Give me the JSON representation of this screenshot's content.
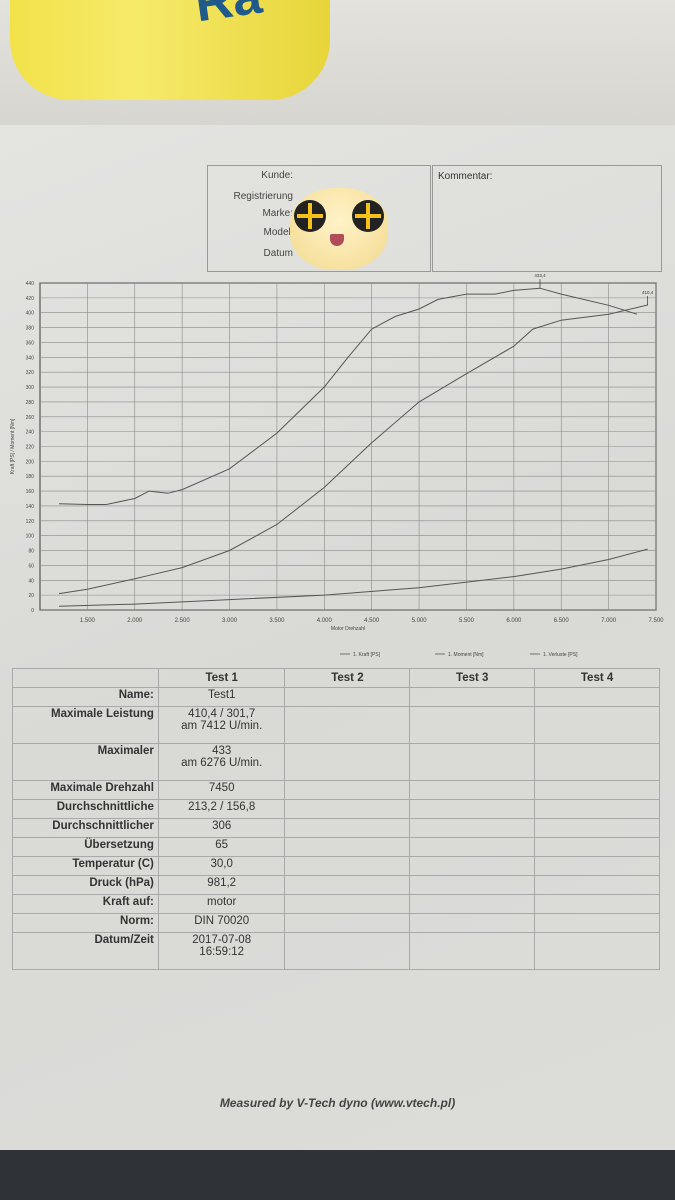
{
  "header": {
    "fields": [
      {
        "label": "Kunde:"
      },
      {
        "label": "Registrierung"
      },
      {
        "label": "Marke:"
      },
      {
        "label": "Modell"
      },
      {
        "label": "Datum"
      }
    ],
    "comment_label": "Kommentar:"
  },
  "background_logo_text": "Ra",
  "chart_data": {
    "type": "line",
    "xlabel": "Motor Drehzahl",
    "ylabel": "Kraft [PS] / Moment [Nm]",
    "xlim": [
      1000,
      7500
    ],
    "ylim": [
      0,
      440
    ],
    "x_ticks": [
      "1.500",
      "2.000",
      "2.500",
      "3.000",
      "3.500",
      "4.000",
      "4.500",
      "5.000",
      "5.500",
      "6.000",
      "6.500",
      "7.000",
      "7.500"
    ],
    "x_tick_values": [
      1500,
      2000,
      2500,
      3000,
      3500,
      4000,
      4500,
      5000,
      5500,
      6000,
      6500,
      7000,
      7500
    ],
    "y_ticks": [
      0,
      20,
      40,
      60,
      80,
      100,
      120,
      140,
      160,
      180,
      200,
      220,
      240,
      260,
      280,
      300,
      320,
      340,
      360,
      380,
      400,
      420,
      440
    ],
    "grid": true,
    "legend_position": "bottom",
    "series": [
      {
        "name": "1. Kraft [PS]",
        "x": [
          1200,
          1500,
          2000,
          2200,
          2500,
          3000,
          3500,
          4000,
          4500,
          5000,
          5500,
          6000,
          6200,
          6500,
          7000,
          7412
        ],
        "y": [
          22,
          28,
          42,
          48,
          57,
          80,
          115,
          165,
          225,
          280,
          318,
          355,
          378,
          390,
          398,
          410.4
        ]
      },
      {
        "name": "1. Moment [Nm]",
        "x": [
          1200,
          1500,
          1700,
          2000,
          2150,
          2350,
          2500,
          3000,
          3500,
          4000,
          4250,
          4500,
          4750,
          5000,
          5200,
          5500,
          5800,
          6000,
          6276,
          6500,
          7000,
          7300
        ],
        "y": [
          143,
          142,
          142,
          150,
          160,
          157,
          162,
          190,
          238,
          300,
          340,
          378,
          395,
          405,
          418,
          425,
          425,
          430,
          433,
          425,
          410,
          398
        ]
      },
      {
        "name": "1. Verluste [PS]",
        "x": [
          1200,
          2000,
          3000,
          4000,
          5000,
          6000,
          6500,
          7000,
          7412
        ],
        "y": [
          5,
          8,
          14,
          20,
          30,
          45,
          55,
          68,
          82
        ]
      }
    ],
    "annotations": [
      {
        "text": "433,4",
        "x": 6276,
        "y": 433
      },
      {
        "text": "410,4",
        "x": 7412,
        "y": 410.4
      }
    ]
  },
  "table": {
    "columns": [
      "Test 1",
      "Test 2",
      "Test 3",
      "Test 4"
    ],
    "rows": [
      {
        "label": "Name:",
        "value": [
          "Test1"
        ]
      },
      {
        "label": "Maximale Leistung",
        "value": [
          "410,4 / 301,7",
          "am 7412   U/min."
        ]
      },
      {
        "label": "Maximaler",
        "value": [
          "433",
          "am 6276   U/min."
        ]
      },
      {
        "label": "Maximale Drehzahl",
        "value": [
          "7450"
        ]
      },
      {
        "label": "Durchschnittliche",
        "value": [
          "213,2 / 156,8"
        ]
      },
      {
        "label": "Durchschnittlicher",
        "value": [
          "306"
        ]
      },
      {
        "label": "Übersetzung",
        "value": [
          "65"
        ]
      },
      {
        "label": "Temperatur (C)",
        "value": [
          "30,0"
        ]
      },
      {
        "label": "Druck (hPa)",
        "value": [
          "981,2"
        ]
      },
      {
        "label": "Kraft auf:",
        "value": [
          "motor"
        ]
      },
      {
        "label": "Norm:",
        "value": [
          "DIN 70020"
        ]
      },
      {
        "label": "Datum/Zeit",
        "value": [
          "2017-07-08",
          "16:59:12"
        ]
      }
    ]
  },
  "footer": "Measured by V-Tech dyno (www.vtech.pl)",
  "colors": {
    "curve": "#555555",
    "grid": "#8a8a8a",
    "paper": "#dedede"
  }
}
